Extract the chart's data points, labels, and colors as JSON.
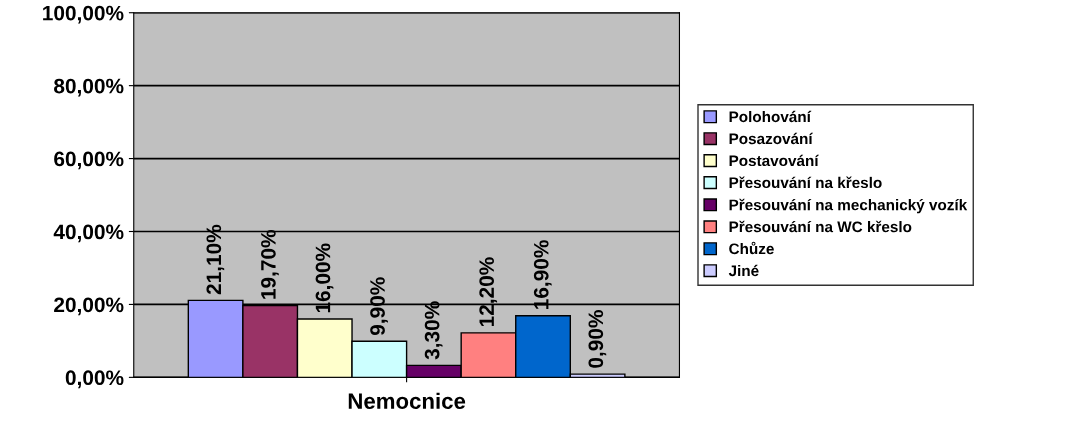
{
  "chart_data": {
    "type": "bar",
    "xlabel": "Nemocnice",
    "categories": [
      null
    ],
    "ylim": [
      0,
      100
    ],
    "yticks": [
      {
        "value": 0,
        "label": "0,00%"
      },
      {
        "value": 20,
        "label": "20,00%"
      },
      {
        "value": 40,
        "label": "40,00%"
      },
      {
        "value": 60,
        "label": "60,00%"
      },
      {
        "value": 80,
        "label": "80,00%"
      },
      {
        "value": 100,
        "label": "100,00%"
      }
    ],
    "grid": "y",
    "legend": "right",
    "series": [
      {
        "name": "Polohování",
        "color": "#9999ff",
        "values": [
          21.1
        ],
        "value_labels": [
          "21,10%"
        ]
      },
      {
        "name": "Posazování",
        "color": "#993366",
        "values": [
          19.7
        ],
        "value_labels": [
          "19,70%"
        ]
      },
      {
        "name": "Postavování",
        "color": "#ffffcc",
        "values": [
          16.0
        ],
        "value_labels": [
          "16,00%"
        ]
      },
      {
        "name": "Přesouvání na křeslo",
        "color": "#ccffff",
        "values": [
          9.9
        ],
        "value_labels": [
          "9,90%"
        ]
      },
      {
        "name": "Přesouvání na mechanický vozík",
        "color": "#660066",
        "values": [
          3.3
        ],
        "value_labels": [
          "3,30%"
        ]
      },
      {
        "name": "Přesouvání na WC křeslo",
        "color": "#ff8080",
        "values": [
          12.2
        ],
        "value_labels": [
          "12,20%"
        ]
      },
      {
        "name": "Chůze",
        "color": "#0066cc",
        "values": [
          16.9
        ],
        "value_labels": [
          "16,90%"
        ]
      },
      {
        "name": "Jiné",
        "color": "#ccccff",
        "values": [
          0.9
        ],
        "value_labels": [
          "0,90%"
        ]
      }
    ]
  }
}
